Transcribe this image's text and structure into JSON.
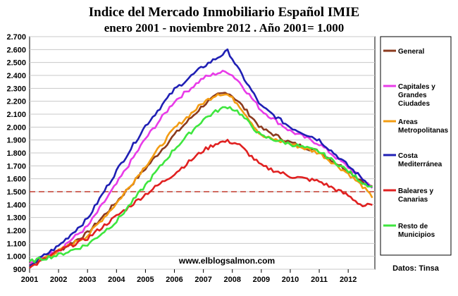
{
  "chart_data": {
    "type": "line",
    "title": "Indice del Mercado Inmobiliario Español  IMIE",
    "subtitle": "enero 2001 - noviembre 2012 .  Año 2001= 1.000",
    "xlabel": "",
    "ylabel": "",
    "ylim": [
      900,
      2700
    ],
    "y_ticks": [
      "2.700",
      "2.600",
      "2.500",
      "2.400",
      "2.300",
      "2.200",
      "2.100",
      "2.000",
      "1.900",
      "1.800",
      "1.700",
      "1.600",
      "1.500",
      "1.400",
      "1.300",
      "1.200",
      "1.100",
      "1.000",
      "900"
    ],
    "x_ticks": [
      "2001",
      "2002",
      "2003",
      "2004",
      "2005",
      "2006",
      "2007",
      "2008",
      "2009",
      "2010",
      "2011",
      "2012"
    ],
    "x_range": [
      2001.0,
      2012.92
    ],
    "grid": true,
    "legend_position": "right",
    "reference_line": {
      "y": 1500,
      "style": "dashed",
      "color": "#c0392b"
    },
    "series": [
      {
        "name": "General",
        "color": "#8b3a1e",
        "x": [
          2001.0,
          2002.0,
          2003.0,
          2004.0,
          2005.0,
          2006.0,
          2007.0,
          2007.5,
          2007.85,
          2008.2,
          2009.0,
          2010.0,
          2011.0,
          2012.0,
          2012.5,
          2012.92
        ],
        "y": [
          935,
          1040,
          1180,
          1420,
          1680,
          1940,
          2170,
          2250,
          2270,
          2200,
          1990,
          1880,
          1810,
          1660,
          1580,
          1530
        ]
      },
      {
        "name": "Capitales y Grandes Ciudades",
        "color": "#e83be8",
        "x": [
          2001.0,
          2002.0,
          2003.0,
          2004.0,
          2005.0,
          2006.0,
          2007.0,
          2007.5,
          2007.85,
          2008.2,
          2009.0,
          2010.0,
          2011.0,
          2012.0,
          2012.5,
          2012.92
        ],
        "y": [
          940,
          1050,
          1230,
          1560,
          1910,
          2200,
          2380,
          2420,
          2430,
          2360,
          2130,
          1970,
          1870,
          1690,
          1600,
          1510
        ]
      },
      {
        "name": "Areas Metropolitanas",
        "color": "#f39c12",
        "x": [
          2001.0,
          2002.0,
          2003.0,
          2004.0,
          2005.0,
          2006.0,
          2007.0,
          2007.5,
          2007.85,
          2008.2,
          2009.0,
          2010.0,
          2011.0,
          2012.0,
          2012.5,
          2012.92
        ],
        "y": [
          935,
          1040,
          1160,
          1410,
          1700,
          1990,
          2190,
          2260,
          2250,
          2180,
          1930,
          1870,
          1800,
          1640,
          1540,
          1430
        ]
      },
      {
        "name": "Costa Mediterránea",
        "color": "#1f1fb4",
        "x": [
          2001.0,
          2002.0,
          2003.0,
          2004.0,
          2005.0,
          2006.0,
          2007.0,
          2007.5,
          2007.85,
          2008.2,
          2009.0,
          2010.0,
          2011.0,
          2012.0,
          2012.5,
          2012.92
        ],
        "y": [
          930,
          1080,
          1290,
          1660,
          2010,
          2290,
          2470,
          2540,
          2590,
          2450,
          2160,
          2000,
          1900,
          1700,
          1600,
          1520
        ]
      },
      {
        "name": "Baleares y Canarias",
        "color": "#e02020",
        "x": [
          2001.0,
          2002.0,
          2003.0,
          2004.0,
          2005.0,
          2006.0,
          2007.0,
          2007.5,
          2007.85,
          2008.2,
          2009.0,
          2010.0,
          2011.0,
          2012.0,
          2012.5,
          2012.92
        ],
        "y": [
          910,
          1040,
          1140,
          1310,
          1480,
          1640,
          1820,
          1880,
          1890,
          1870,
          1700,
          1620,
          1580,
          1470,
          1390,
          1400
        ]
      },
      {
        "name": "Resto de Municipios",
        "color": "#3ee63e",
        "x": [
          2001.0,
          2002.0,
          2003.0,
          2004.0,
          2005.0,
          2006.0,
          2007.0,
          2007.5,
          2007.85,
          2008.2,
          2009.0,
          2010.0,
          2011.0,
          2012.0,
          2012.5,
          2012.92
        ],
        "y": [
          960,
          1010,
          1090,
          1270,
          1550,
          1830,
          2060,
          2130,
          2160,
          2120,
          1930,
          1870,
          1810,
          1660,
          1570,
          1530
        ]
      }
    ]
  },
  "watermark": "www.elblogsalmon.com",
  "source": "Datos: Tinsa"
}
